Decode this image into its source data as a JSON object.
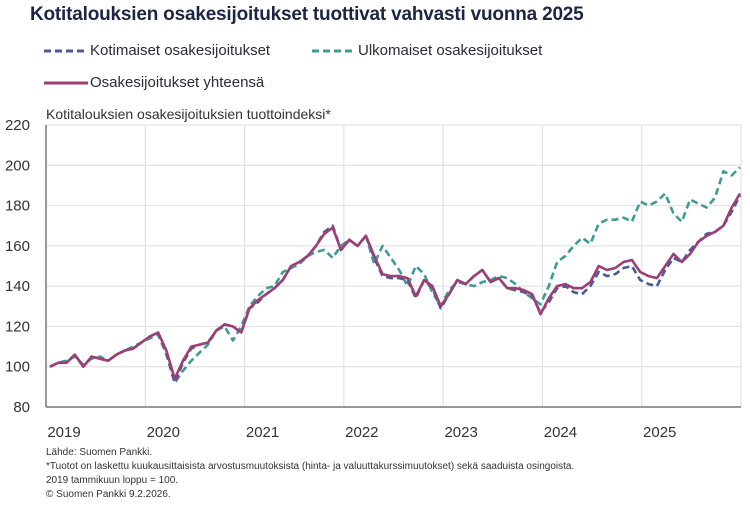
{
  "title": "Kotitalouksien osakesijoitukset tuottivat vahvasti vuonna 2025",
  "chart_data": {
    "type": "line",
    "title": "Kotitalouksien osakesijoitukset tuottivat vahvasti vuonna 2025",
    "ylabel": "Kotitalouksien osakesijoituksien tuottoindeksi*",
    "xlabel": "",
    "ylim": [
      80,
      220
    ],
    "yticks": [
      80,
      100,
      120,
      140,
      160,
      180,
      200,
      220
    ],
    "xticks": [
      "2019",
      "2020",
      "2021",
      "2022",
      "2023",
      "2024",
      "2025"
    ],
    "frequency": "monthly, 2019-01 to 2025-12",
    "grid": true,
    "legend_position": "top",
    "series": [
      {
        "name": "Kotimaiset osakesijoitukset",
        "style": "dashed",
        "color": "#4b5a99",
        "values": [
          100,
          102,
          102,
          106,
          100,
          105,
          104,
          103,
          106,
          108,
          109,
          112,
          115,
          117,
          107,
          92,
          102,
          109,
          111,
          112,
          118,
          121,
          120,
          117,
          129,
          132,
          136,
          139,
          143,
          150,
          152,
          155,
          160,
          167,
          170,
          158,
          163,
          160,
          165,
          154,
          145,
          144,
          144,
          143,
          134,
          143,
          139,
          129,
          136,
          143,
          141,
          145,
          148,
          142,
          144,
          139,
          138,
          137,
          135,
          127,
          132,
          139,
          140,
          137,
          136,
          140,
          147,
          145,
          146,
          149,
          150,
          143,
          141,
          140,
          148,
          154,
          152,
          158,
          162,
          166,
          167,
          170,
          177,
          185
        ]
      },
      {
        "name": "Ulkomaiset osakesijoitukset",
        "style": "dashed",
        "color": "#3f9b98",
        "values": [
          100,
          102,
          103,
          105,
          101,
          104,
          105,
          103,
          106,
          108,
          110,
          112,
          114,
          116,
          106,
          92,
          98,
          103,
          107,
          111,
          118,
          120,
          113,
          120,
          130,
          135,
          139,
          140,
          147,
          149,
          151,
          155,
          157,
          158,
          154,
          160,
          163,
          160,
          165,
          151,
          160,
          154,
          148,
          140,
          150,
          146,
          137,
          130,
          138,
          142,
          141,
          140,
          142,
          143,
          145,
          144,
          141,
          137,
          134,
          131,
          140,
          152,
          155,
          160,
          164,
          161,
          171,
          173,
          173,
          174,
          172,
          182,
          180,
          182,
          186,
          176,
          172,
          183,
          181,
          179,
          184,
          197,
          195,
          199
        ]
      },
      {
        "name": "Osakesijoitukset yhteensä",
        "style": "solid",
        "color": "#9c3f74",
        "values": [
          100,
          102,
          102,
          106,
          100,
          105,
          104,
          103,
          106,
          108,
          109,
          112,
          115,
          117,
          108,
          94,
          103,
          110,
          111,
          112,
          118,
          121,
          120,
          117,
          129,
          133,
          136,
          139,
          143,
          150,
          152,
          155,
          160,
          166,
          169,
          158,
          163,
          160,
          165,
          155,
          146,
          145,
          145,
          144,
          135,
          143,
          140,
          130,
          136,
          143,
          141,
          145,
          148,
          142,
          144,
          139,
          139,
          138,
          136,
          126,
          134,
          140,
          141,
          139,
          139,
          142,
          150,
          148,
          149,
          152,
          153,
          147,
          145,
          144,
          150,
          156,
          152,
          156,
          162,
          165,
          167,
          170,
          179,
          186
        ]
      }
    ]
  },
  "notes": {
    "source": "Lähde: Suomen Pankki.",
    "footnote": "*Tuotot on laskettu kuukausittaisista arvostusmuutoksista (hinta- ja valuuttakurssimuutokset) sekä saaduista osingoista.",
    "base": "2019 tammikuun loppu = 100.",
    "copyright": "© Suomen Pankki 9.2.2026."
  }
}
